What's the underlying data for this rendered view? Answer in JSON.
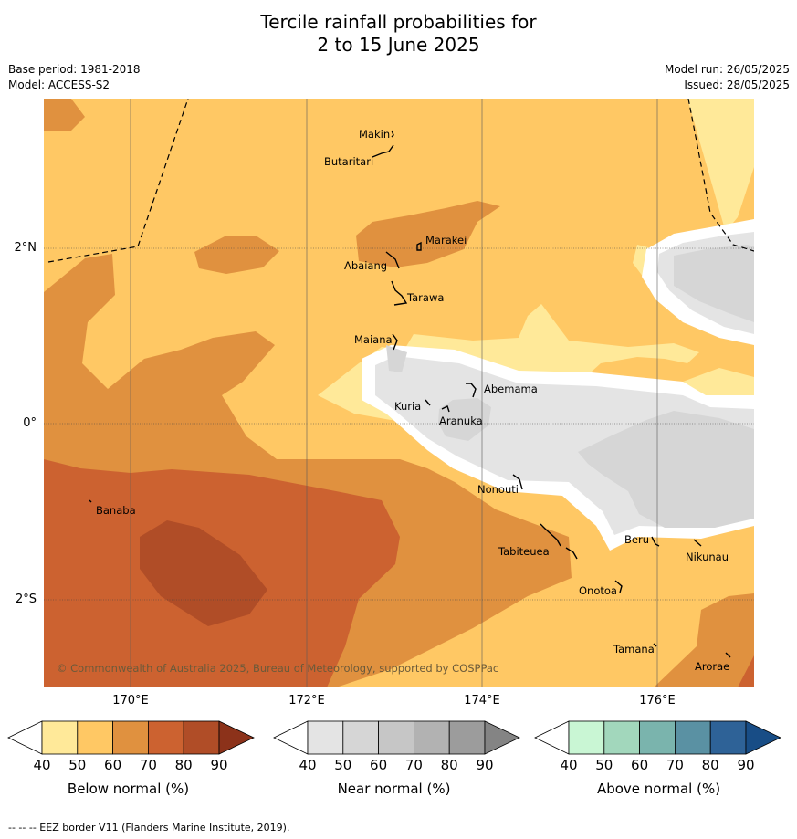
{
  "title": {
    "line1": "Tercile rainfall probabilities for",
    "line2": "2 to 15 June 2025"
  },
  "meta": {
    "base_period": "Base period: 1981-2018",
    "model": "Model: ACCESS-S2",
    "model_run": "Model run: 26/05/2025",
    "issued": "Issued: 28/05/2025"
  },
  "map": {
    "lat_labels": [
      "2°N",
      "0°",
      "2°S"
    ],
    "lon_labels": [
      "170°E",
      "172°E",
      "174°E",
      "176°E"
    ],
    "places": [
      "Makin",
      "Butaritari",
      "Marakei",
      "Abaiang",
      "Tarawa",
      "Maiana",
      "Abemama",
      "Kuria",
      "Aranuka",
      "Nonouti",
      "Banaba",
      "Tabiteuea",
      "Beru",
      "Nikunau",
      "Onotoa",
      "Tamana",
      "Arorae"
    ],
    "copyright": "© Commonwealth of Australia 2025, Bureau of Meteorology, supported by COSPPac"
  },
  "colorbars": [
    {
      "label": "Below normal (%)",
      "ticks": [
        "40",
        "50",
        "60",
        "70",
        "80",
        "90"
      ],
      "colors": [
        "#ffffff",
        "#ffe999",
        "#ffc864",
        "#e0913f",
        "#cc6230",
        "#b04d27",
        "#8c321a"
      ]
    },
    {
      "label": "Near normal (%)",
      "ticks": [
        "40",
        "50",
        "60",
        "70",
        "80",
        "90"
      ],
      "colors": [
        "#ffffff",
        "#e4e4e4",
        "#d6d6d6",
        "#c6c6c6",
        "#b2b2b2",
        "#9c9c9c",
        "#848484"
      ]
    },
    {
      "label": "Above normal (%)",
      "ticks": [
        "40",
        "50",
        "60",
        "70",
        "80",
        "90"
      ],
      "colors": [
        "#ffffff",
        "#c9f6d4",
        "#a2d7bc",
        "#7ab4ad",
        "#5a91a3",
        "#2e6297",
        "#184d86"
      ]
    }
  ],
  "footer": "--  --  -- EEZ border V11 (Flanders Marine Institute, 2019)."
}
